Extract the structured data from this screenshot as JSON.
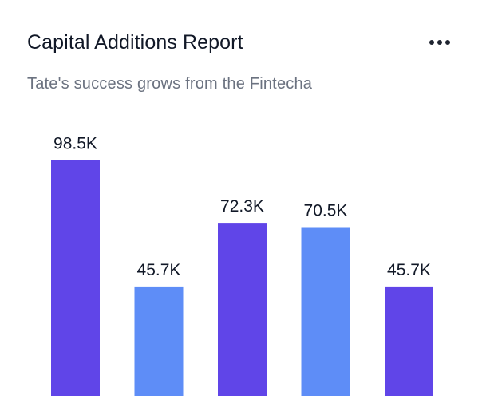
{
  "header": {
    "title": "Capital Additions Report",
    "subtitle": "Tate's success grows from the Fintecha"
  },
  "colors": {
    "primary": "#6045e8",
    "secondary": "#5e8df7"
  },
  "chart_data": {
    "type": "bar",
    "title": "Capital Additions Report",
    "subtitle": "Tate's success grows from the Fintecha",
    "values": [
      98.5,
      45.7,
      72.3,
      70.5,
      45.7
    ],
    "labels": [
      "98.5K",
      "45.7K",
      "72.3K",
      "70.5K",
      "45.7K"
    ],
    "bar_colors": [
      "#6045e8",
      "#5e8df7",
      "#6045e8",
      "#5e8df7",
      "#6045e8"
    ],
    "ylim": [
      0,
      100
    ],
    "grid": false,
    "legend": "none"
  }
}
